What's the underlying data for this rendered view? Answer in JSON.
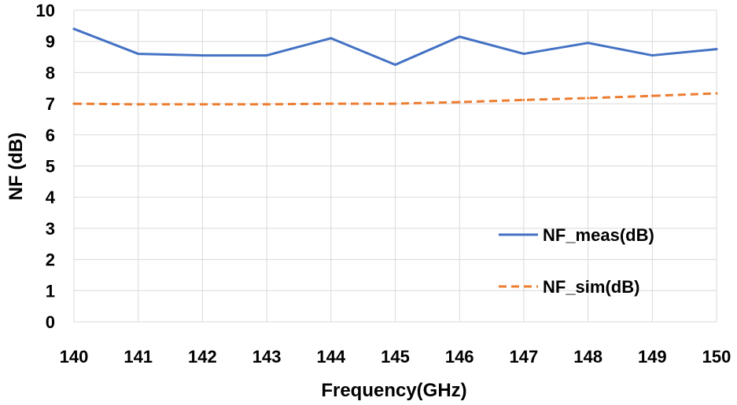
{
  "chart_data": {
    "type": "line",
    "xlabel": "Frequency(GHz)",
    "ylabel": "NF (dB)",
    "x": [
      140,
      141,
      142,
      143,
      144,
      145,
      146,
      147,
      148,
      149,
      150
    ],
    "xlim": [
      140,
      150
    ],
    "ylim": [
      0,
      10
    ],
    "x_ticks": [
      140,
      141,
      142,
      143,
      144,
      145,
      146,
      147,
      148,
      149,
      150
    ],
    "y_ticks": [
      0,
      1,
      2,
      3,
      4,
      5,
      6,
      7,
      8,
      9,
      10
    ],
    "grid": true,
    "legend_position": "bottom-right",
    "series": [
      {
        "name": "NF_meas(dB)",
        "color": "#4472c4",
        "style": "solid",
        "values": [
          9.4,
          8.6,
          8.55,
          8.55,
          9.1,
          8.25,
          9.15,
          8.6,
          8.95,
          8.55,
          8.75
        ]
      },
      {
        "name": "NF_sim(dB)",
        "color": "#ed7d31",
        "style": "dashed",
        "values": [
          7.0,
          6.98,
          6.98,
          6.98,
          7.0,
          7.0,
          7.05,
          7.12,
          7.18,
          7.25,
          7.33
        ]
      }
    ]
  }
}
